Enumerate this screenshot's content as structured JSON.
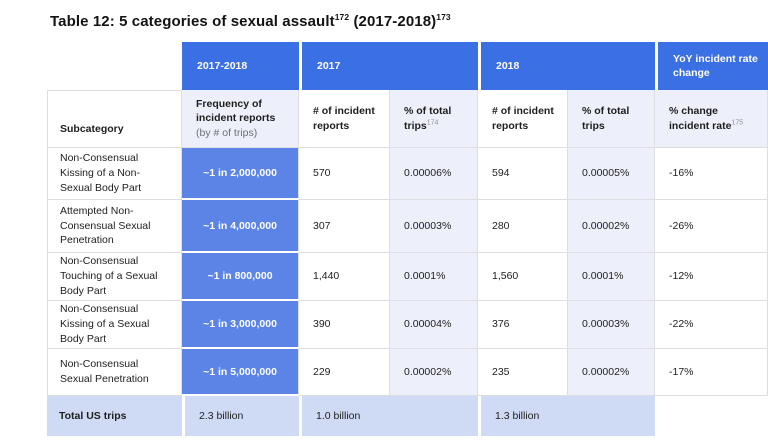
{
  "title": {
    "main": "Table 12: 5 categories of sexual assault",
    "sup_a": "172",
    "mid": " (2017-2018)",
    "sup_b": "173"
  },
  "table": {
    "groups": {
      "period": "2017-2018",
      "y2017": "2017",
      "y2018": "2018",
      "yoy": "YoY incident rate change"
    },
    "headers": {
      "subcategory": "Subcategory",
      "frequency_title": "Frequency of incident reports",
      "frequency_note": "(by # of trips)",
      "reports_2017": "# of incident reports",
      "pct_trips_2017": "% of total trips",
      "pct_trips_2017_sup": "174",
      "reports_2018": "# of incident reports",
      "pct_trips_2018": "% of total trips",
      "yoy": "% change incident rate",
      "yoy_sup": "175"
    },
    "rows": [
      {
        "subcategory": "Non-Consensual Kissing of a Non-Sexual Body Part",
        "frequency": "~1 in 2,000,000",
        "reports_2017": "570",
        "pct_2017": "0.00006%",
        "reports_2018": "594",
        "pct_2018": "0.00005%",
        "yoy_change": "-16%"
      },
      {
        "subcategory": "Attempted Non-Consensual Sexual Penetration",
        "frequency": "~1 in 4,000,000",
        "reports_2017": "307",
        "pct_2017": "0.00003%",
        "reports_2018": "280",
        "pct_2018": "0.00002%",
        "yoy_change": "-26%"
      },
      {
        "subcategory": "Non-Consensual Touching of a Sexual Body Part",
        "frequency": "~1 in 800,000",
        "reports_2017": "1,440",
        "pct_2017": "0.0001%",
        "reports_2018": "1,560",
        "pct_2018": "0.0001%",
        "yoy_change": "-12%"
      },
      {
        "subcategory": "Non-Consensual Kissing of a Sexual Body Part",
        "frequency": "~1 in 3,000,000",
        "reports_2017": "390",
        "pct_2017": "0.00004%",
        "reports_2018": "376",
        "pct_2018": "0.00003%",
        "yoy_change": "-22%"
      },
      {
        "subcategory": "Non-Consensual Sexual Penetration",
        "frequency": "~1 in 5,000,000",
        "reports_2017": "229",
        "pct_2017": "0.00002%",
        "reports_2018": "235",
        "pct_2018": "0.00002%",
        "yoy_change": "-17%"
      }
    ],
    "total": {
      "label": "Total US trips",
      "trips_2017_2018": "2.3 billion",
      "trips_2017": "1.0 billion",
      "trips_2018": "1.3 billion"
    }
  },
  "colors": {
    "group_header_blue": "#3B6FE4",
    "frequency_cell_blue": "#5C84E6",
    "light_lavender": "#EDF0FA",
    "total_row_blue": "#CFDBF4",
    "border_gray": "#DEDEE2"
  }
}
